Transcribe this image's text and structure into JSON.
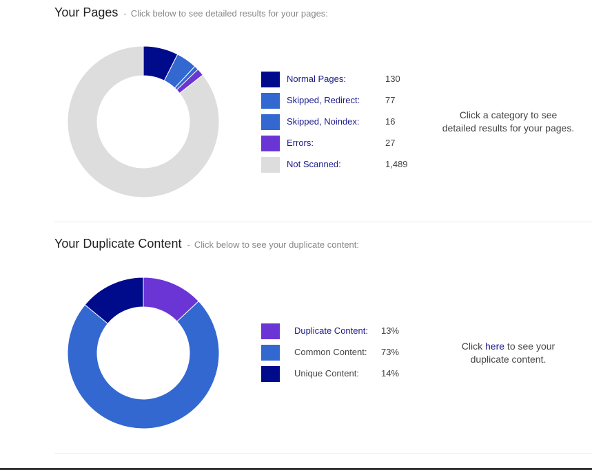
{
  "pages": {
    "title": "Your Pages",
    "separator": "-",
    "subtitle": "Click below to see detailed results for your pages:",
    "note_line1": "Click a category to see",
    "note_line2": "detailed results for your pages."
  },
  "duplicate": {
    "title": "Your Duplicate Content",
    "separator": "-",
    "subtitle": "Click below to see your duplicate content:",
    "note_prefix": "Click ",
    "note_link": "here",
    "note_suffix": " to see your",
    "note_line2": "duplicate content."
  },
  "colors": {
    "navy": "#000b8c",
    "blue": "#3368d1",
    "purple": "#6b35d6",
    "grey": "#dddddd"
  },
  "chart_data": [
    {
      "type": "pie",
      "donut": true,
      "title": "",
      "categories": [
        "Normal Pages:",
        "Skipped, Redirect:",
        "Skipped, Noindex:",
        "Errors:",
        "Not Scanned:"
      ],
      "values": [
        130,
        77,
        16,
        27,
        1489
      ],
      "display_values": [
        "130",
        "77",
        "16",
        "27",
        "1,489"
      ],
      "colors": [
        "#000b8c",
        "#3368d1",
        "#3368d1",
        "#6b35d6",
        "#dddddd"
      ],
      "legend": "right"
    },
    {
      "type": "pie",
      "donut": true,
      "title": "",
      "categories": [
        "Duplicate Content:",
        "Common Content:",
        "Unique Content:"
      ],
      "values": [
        13,
        73,
        14
      ],
      "display_values": [
        "13%",
        "73%",
        "14%"
      ],
      "colors": [
        "#6b35d6",
        "#3368d1",
        "#000b8c"
      ],
      "legend": "right"
    }
  ]
}
